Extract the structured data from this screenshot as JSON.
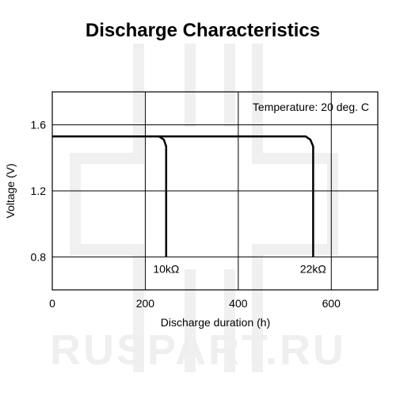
{
  "chart_data": {
    "type": "line",
    "title": "Discharge Characteristics",
    "xlabel": "Discharge duration (h)",
    "ylabel": "Voltage (V)",
    "xlim": [
      0,
      700
    ],
    "ylim": [
      0.6,
      1.8
    ],
    "xticks": [
      0,
      200,
      400,
      600
    ],
    "yticks": [
      0.8,
      1.2,
      1.6
    ],
    "xtick_labels": [
      "0",
      "200",
      "400",
      "600"
    ],
    "ytick_labels": [
      "0.8",
      "1.2",
      "1.6"
    ],
    "grid": true,
    "annotation": "Temperature: 20 deg. C",
    "series": [
      {
        "name": "10kΩ",
        "x": [
          0,
          230,
          240,
          245,
          245
        ],
        "y": [
          1.53,
          1.53,
          1.51,
          1.47,
          0.8
        ]
      },
      {
        "name": "22kΩ",
        "x": [
          0,
          545,
          555,
          561,
          561
        ],
        "y": [
          1.53,
          1.53,
          1.51,
          1.47,
          0.8
        ]
      }
    ]
  },
  "watermark": "RUSPART.RU"
}
